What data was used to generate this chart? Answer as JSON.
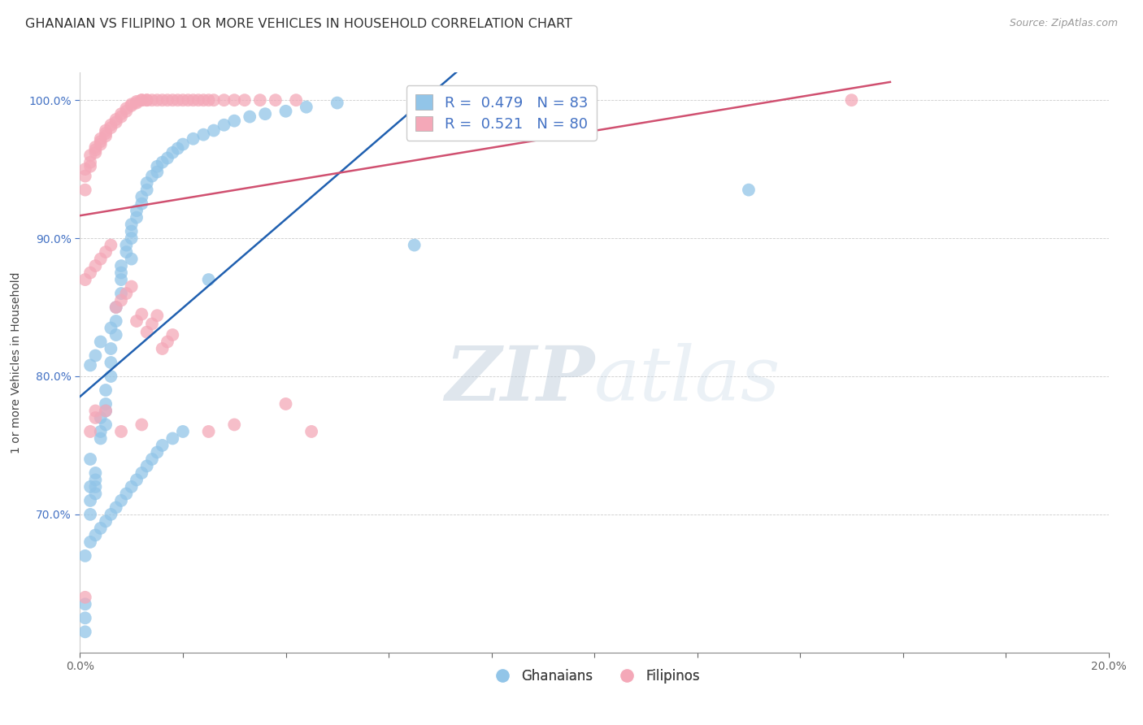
{
  "title": "GHANAIAN VS FILIPINO 1 OR MORE VEHICLES IN HOUSEHOLD CORRELATION CHART",
  "source": "Source: ZipAtlas.com",
  "ylabel": "1 or more Vehicles in Household",
  "xlabel": "",
  "xlim": [
    0.0,
    0.2
  ],
  "ylim": [
    0.6,
    1.02
  ],
  "xticks": [
    0.0,
    0.02,
    0.04,
    0.06,
    0.08,
    0.1,
    0.12,
    0.14,
    0.16,
    0.18,
    0.2
  ],
  "ytick_positions": [
    0.7,
    0.8,
    0.9,
    1.0
  ],
  "yticklabels": [
    "70.0%",
    "80.0%",
    "90.0%",
    "100.0%"
  ],
  "blue_color": "#92C5E8",
  "pink_color": "#F4A8B8",
  "blue_line_color": "#2060B0",
  "pink_line_color": "#D05070",
  "legend_ghanaians": "Ghanaians",
  "legend_filipinos": "Filipinos",
  "watermark_zip": "ZIP",
  "watermark_atlas": "atlas",
  "title_fontsize": 11.5,
  "axis_label_fontsize": 10,
  "tick_fontsize": 10,
  "r_blue": 0.479,
  "n_blue": 83,
  "r_pink": 0.521,
  "n_pink": 80,
  "ghanaian_x": [
    0.001,
    0.001,
    0.001,
    0.002,
    0.002,
    0.002,
    0.002,
    0.003,
    0.003,
    0.003,
    0.003,
    0.004,
    0.004,
    0.004,
    0.005,
    0.005,
    0.005,
    0.005,
    0.006,
    0.006,
    0.006,
    0.007,
    0.007,
    0.007,
    0.008,
    0.008,
    0.008,
    0.009,
    0.009,
    0.01,
    0.01,
    0.01,
    0.011,
    0.011,
    0.012,
    0.012,
    0.013,
    0.013,
    0.014,
    0.015,
    0.015,
    0.016,
    0.017,
    0.018,
    0.019,
    0.02,
    0.022,
    0.024,
    0.026,
    0.028,
    0.03,
    0.033,
    0.036,
    0.04,
    0.044,
    0.05,
    0.001,
    0.002,
    0.003,
    0.004,
    0.005,
    0.006,
    0.007,
    0.008,
    0.009,
    0.01,
    0.011,
    0.012,
    0.013,
    0.014,
    0.015,
    0.016,
    0.018,
    0.02,
    0.025,
    0.065,
    0.13,
    0.002,
    0.003,
    0.004,
    0.006,
    0.008,
    0.01
  ],
  "ghanaian_y": [
    0.615,
    0.635,
    0.625,
    0.74,
    0.72,
    0.7,
    0.71,
    0.715,
    0.725,
    0.73,
    0.72,
    0.755,
    0.76,
    0.77,
    0.78,
    0.79,
    0.775,
    0.765,
    0.8,
    0.81,
    0.82,
    0.83,
    0.84,
    0.85,
    0.86,
    0.87,
    0.88,
    0.89,
    0.895,
    0.9,
    0.905,
    0.91,
    0.915,
    0.92,
    0.925,
    0.93,
    0.935,
    0.94,
    0.945,
    0.948,
    0.952,
    0.955,
    0.958,
    0.962,
    0.965,
    0.968,
    0.972,
    0.975,
    0.978,
    0.982,
    0.985,
    0.988,
    0.99,
    0.992,
    0.995,
    0.998,
    0.67,
    0.68,
    0.685,
    0.69,
    0.695,
    0.7,
    0.705,
    0.71,
    0.715,
    0.72,
    0.725,
    0.73,
    0.735,
    0.74,
    0.745,
    0.75,
    0.755,
    0.76,
    0.87,
    0.895,
    0.935,
    0.808,
    0.815,
    0.825,
    0.835,
    0.875,
    0.885
  ],
  "filipino_x": [
    0.001,
    0.001,
    0.001,
    0.002,
    0.002,
    0.002,
    0.003,
    0.003,
    0.003,
    0.004,
    0.004,
    0.004,
    0.005,
    0.005,
    0.005,
    0.006,
    0.006,
    0.007,
    0.007,
    0.008,
    0.008,
    0.009,
    0.009,
    0.01,
    0.01,
    0.011,
    0.011,
    0.012,
    0.012,
    0.013,
    0.013,
    0.014,
    0.015,
    0.016,
    0.017,
    0.018,
    0.019,
    0.02,
    0.021,
    0.022,
    0.023,
    0.024,
    0.025,
    0.026,
    0.028,
    0.03,
    0.032,
    0.035,
    0.038,
    0.042,
    0.001,
    0.002,
    0.003,
    0.004,
    0.005,
    0.006,
    0.007,
    0.008,
    0.009,
    0.01,
    0.011,
    0.012,
    0.013,
    0.014,
    0.015,
    0.016,
    0.017,
    0.018,
    0.04,
    0.045,
    0.15,
    0.003,
    0.005,
    0.008,
    0.012,
    0.025,
    0.03,
    0.001,
    0.002,
    0.003
  ],
  "filipino_y": [
    0.935,
    0.945,
    0.95,
    0.952,
    0.955,
    0.96,
    0.962,
    0.964,
    0.966,
    0.968,
    0.97,
    0.972,
    0.974,
    0.976,
    0.978,
    0.98,
    0.982,
    0.984,
    0.986,
    0.988,
    0.99,
    0.992,
    0.994,
    0.996,
    0.997,
    0.998,
    0.999,
    1.0,
    1.0,
    1.0,
    1.0,
    1.0,
    1.0,
    1.0,
    1.0,
    1.0,
    1.0,
    1.0,
    1.0,
    1.0,
    1.0,
    1.0,
    1.0,
    1.0,
    1.0,
    1.0,
    1.0,
    1.0,
    1.0,
    1.0,
    0.87,
    0.875,
    0.88,
    0.885,
    0.89,
    0.895,
    0.85,
    0.855,
    0.86,
    0.865,
    0.84,
    0.845,
    0.832,
    0.838,
    0.844,
    0.82,
    0.825,
    0.83,
    0.78,
    0.76,
    1.0,
    0.77,
    0.775,
    0.76,
    0.765,
    0.76,
    0.765,
    0.64,
    0.76,
    0.775
  ]
}
